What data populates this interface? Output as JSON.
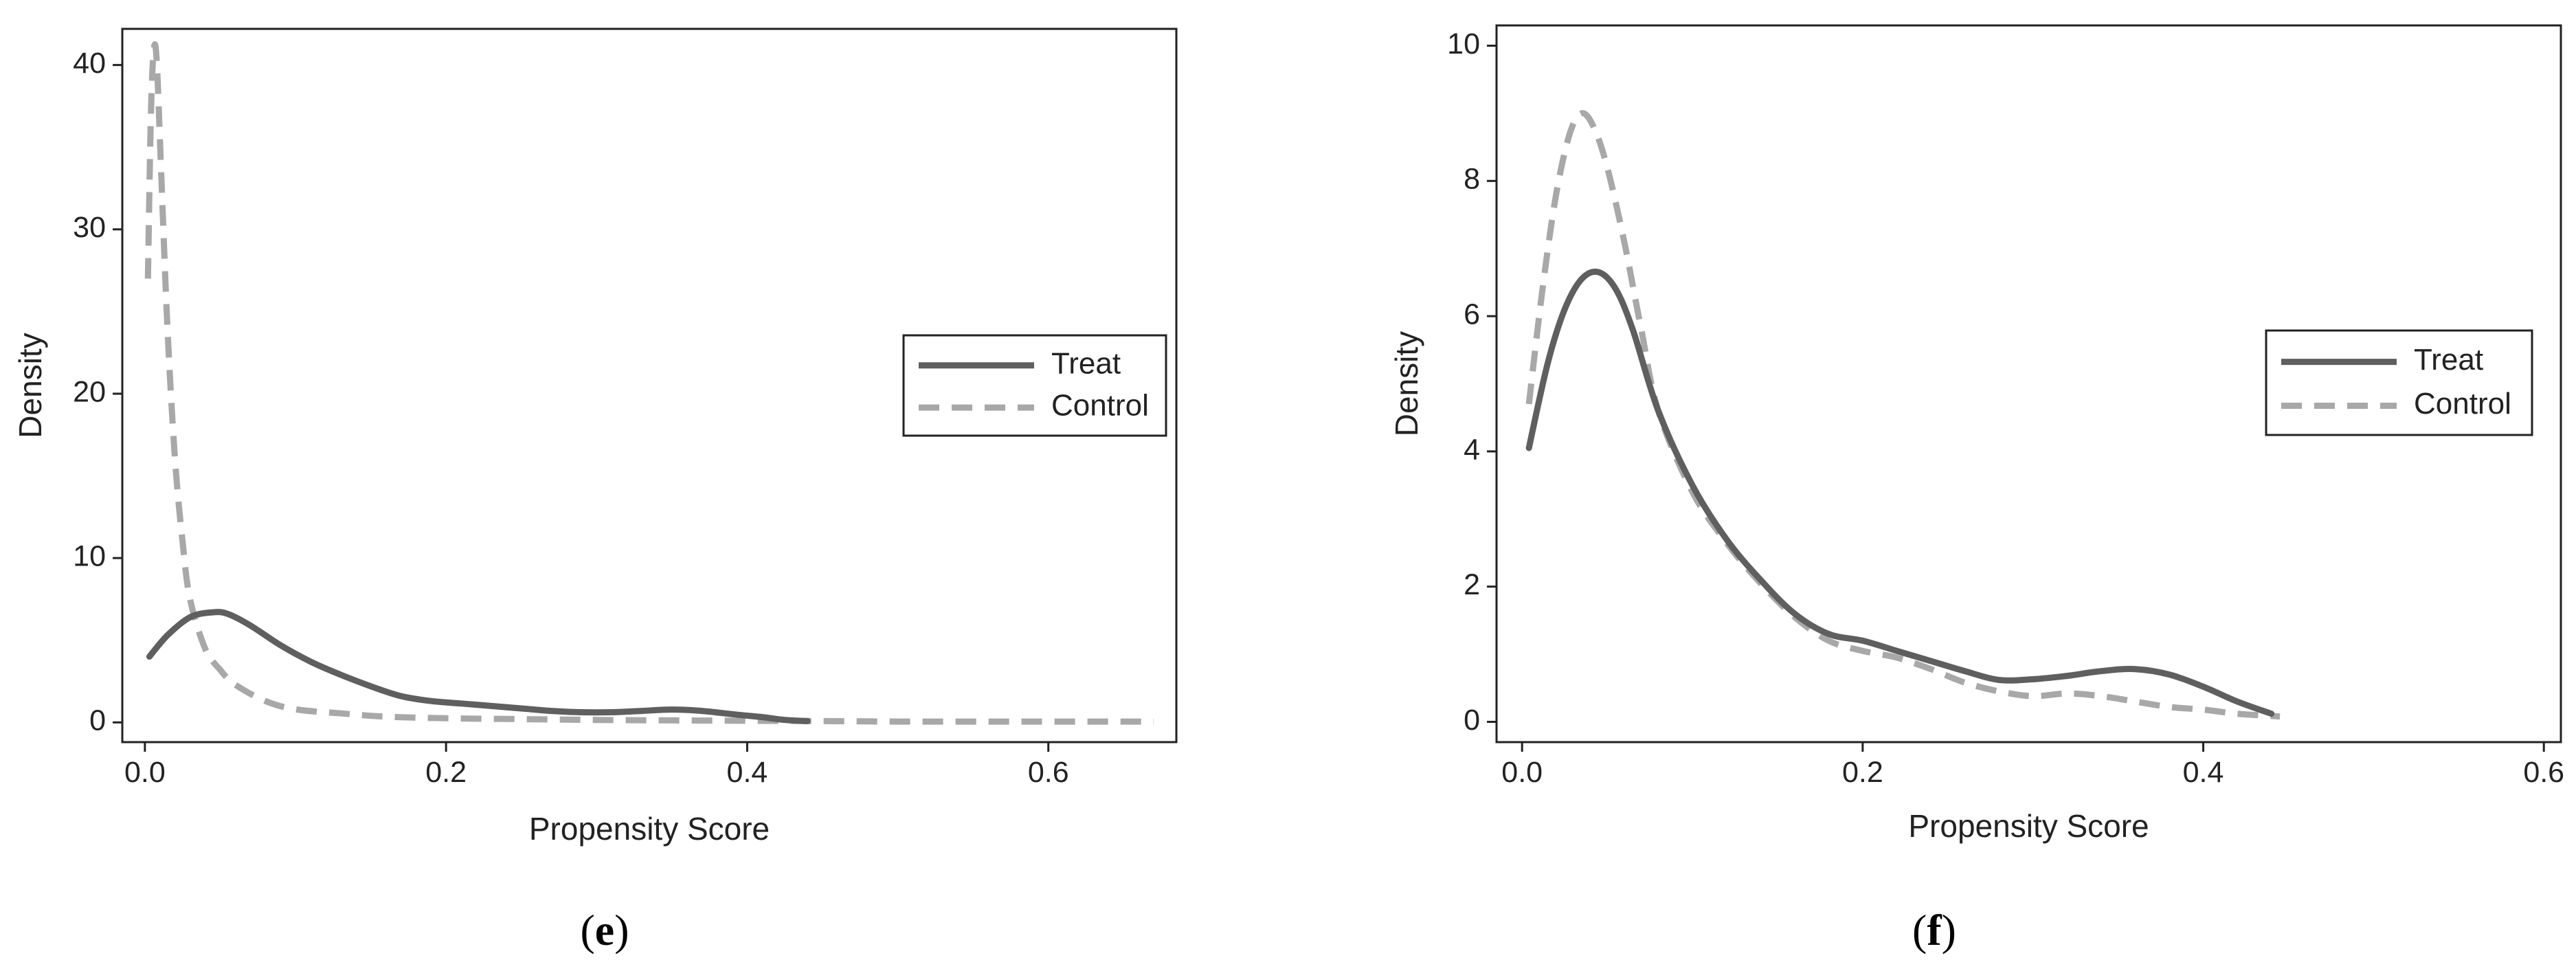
{
  "chart_data": [
    {
      "type": "line",
      "panel_label": "e",
      "xlabel": "Propensity Score",
      "ylabel": "Density",
      "xlim": [
        -0.015,
        0.685
      ],
      "ylim": [
        -1.2,
        42.2
      ],
      "xticks": [
        0.0,
        0.2,
        0.4,
        0.6
      ],
      "xtick_labels": [
        "0.0",
        "0.2",
        "0.4",
        "0.6"
      ],
      "yticks": [
        0,
        10,
        20,
        30,
        40
      ],
      "ytick_labels": [
        "0",
        "10",
        "20",
        "30",
        "40"
      ],
      "grid": false,
      "legend_position": "right",
      "series": [
        {
          "name": "Treat",
          "style": "solid",
          "color": "#5f5f5f",
          "x": [
            0.003,
            0.015,
            0.03,
            0.045,
            0.055,
            0.07,
            0.09,
            0.11,
            0.13,
            0.15,
            0.17,
            0.19,
            0.21,
            0.23,
            0.25,
            0.27,
            0.29,
            0.31,
            0.33,
            0.35,
            0.37,
            0.39,
            0.41,
            0.425,
            0.44
          ],
          "y": [
            4.0,
            5.3,
            6.4,
            6.7,
            6.6,
            5.9,
            4.7,
            3.7,
            2.9,
            2.2,
            1.6,
            1.3,
            1.15,
            1.0,
            0.85,
            0.7,
            0.62,
            0.62,
            0.7,
            0.78,
            0.7,
            0.5,
            0.32,
            0.15,
            0.08
          ]
        },
        {
          "name": "Control",
          "style": "dashed",
          "color": "#a8a8a8",
          "x": [
            0.002,
            0.004,
            0.006,
            0.008,
            0.011,
            0.015,
            0.02,
            0.025,
            0.03,
            0.04,
            0.05,
            0.06,
            0.08,
            0.1,
            0.13,
            0.16,
            0.2,
            0.25,
            0.3,
            0.35,
            0.4,
            0.45,
            0.5,
            0.55,
            0.6,
            0.67
          ],
          "y": [
            27,
            37,
            41,
            40,
            33,
            24,
            16,
            11,
            7.5,
            4.5,
            3.2,
            2.3,
            1.3,
            0.8,
            0.55,
            0.35,
            0.25,
            0.2,
            0.15,
            0.12,
            0.1,
            0.08,
            0.05,
            0.05,
            0.05,
            0.05
          ]
        }
      ]
    },
    {
      "type": "line",
      "panel_label": "f",
      "xlabel": "Propensity Score",
      "ylabel": "Density",
      "xlim": [
        -0.015,
        0.61
      ],
      "ylim": [
        -0.3,
        10.3
      ],
      "xticks": [
        0.0,
        0.2,
        0.4,
        0.6
      ],
      "xtick_labels": [
        "0.0",
        "0.2",
        "0.4",
        "0.6"
      ],
      "yticks": [
        0,
        2,
        4,
        6,
        8,
        10
      ],
      "ytick_labels": [
        "0",
        "2",
        "4",
        "6",
        "8",
        "10"
      ],
      "grid": false,
      "legend_position": "right",
      "series": [
        {
          "name": "Treat",
          "style": "solid",
          "color": "#5f5f5f",
          "x": [
            0.004,
            0.015,
            0.025,
            0.035,
            0.045,
            0.055,
            0.065,
            0.08,
            0.1,
            0.12,
            0.14,
            0.16,
            0.18,
            0.2,
            0.22,
            0.24,
            0.26,
            0.28,
            0.3,
            0.32,
            0.34,
            0.36,
            0.38,
            0.4,
            0.42,
            0.44
          ],
          "y": [
            4.05,
            5.3,
            6.1,
            6.55,
            6.65,
            6.4,
            5.8,
            4.6,
            3.5,
            2.7,
            2.1,
            1.6,
            1.3,
            1.2,
            1.05,
            0.9,
            0.75,
            0.62,
            0.63,
            0.68,
            0.75,
            0.78,
            0.7,
            0.52,
            0.3,
            0.12
          ]
        },
        {
          "name": "Control",
          "style": "dashed",
          "color": "#a8a8a8",
          "x": [
            0.004,
            0.012,
            0.02,
            0.028,
            0.035,
            0.042,
            0.05,
            0.06,
            0.07,
            0.08,
            0.1,
            0.12,
            0.14,
            0.16,
            0.18,
            0.2,
            0.22,
            0.24,
            0.26,
            0.28,
            0.3,
            0.32,
            0.34,
            0.36,
            0.38,
            0.4,
            0.42,
            0.445
          ],
          "y": [
            4.7,
            6.4,
            7.8,
            8.7,
            9.0,
            8.8,
            8.2,
            7.1,
            5.8,
            4.6,
            3.4,
            2.65,
            2.05,
            1.55,
            1.2,
            1.05,
            0.95,
            0.78,
            0.58,
            0.45,
            0.38,
            0.42,
            0.38,
            0.3,
            0.22,
            0.18,
            0.12,
            0.08
          ]
        }
      ]
    }
  ]
}
